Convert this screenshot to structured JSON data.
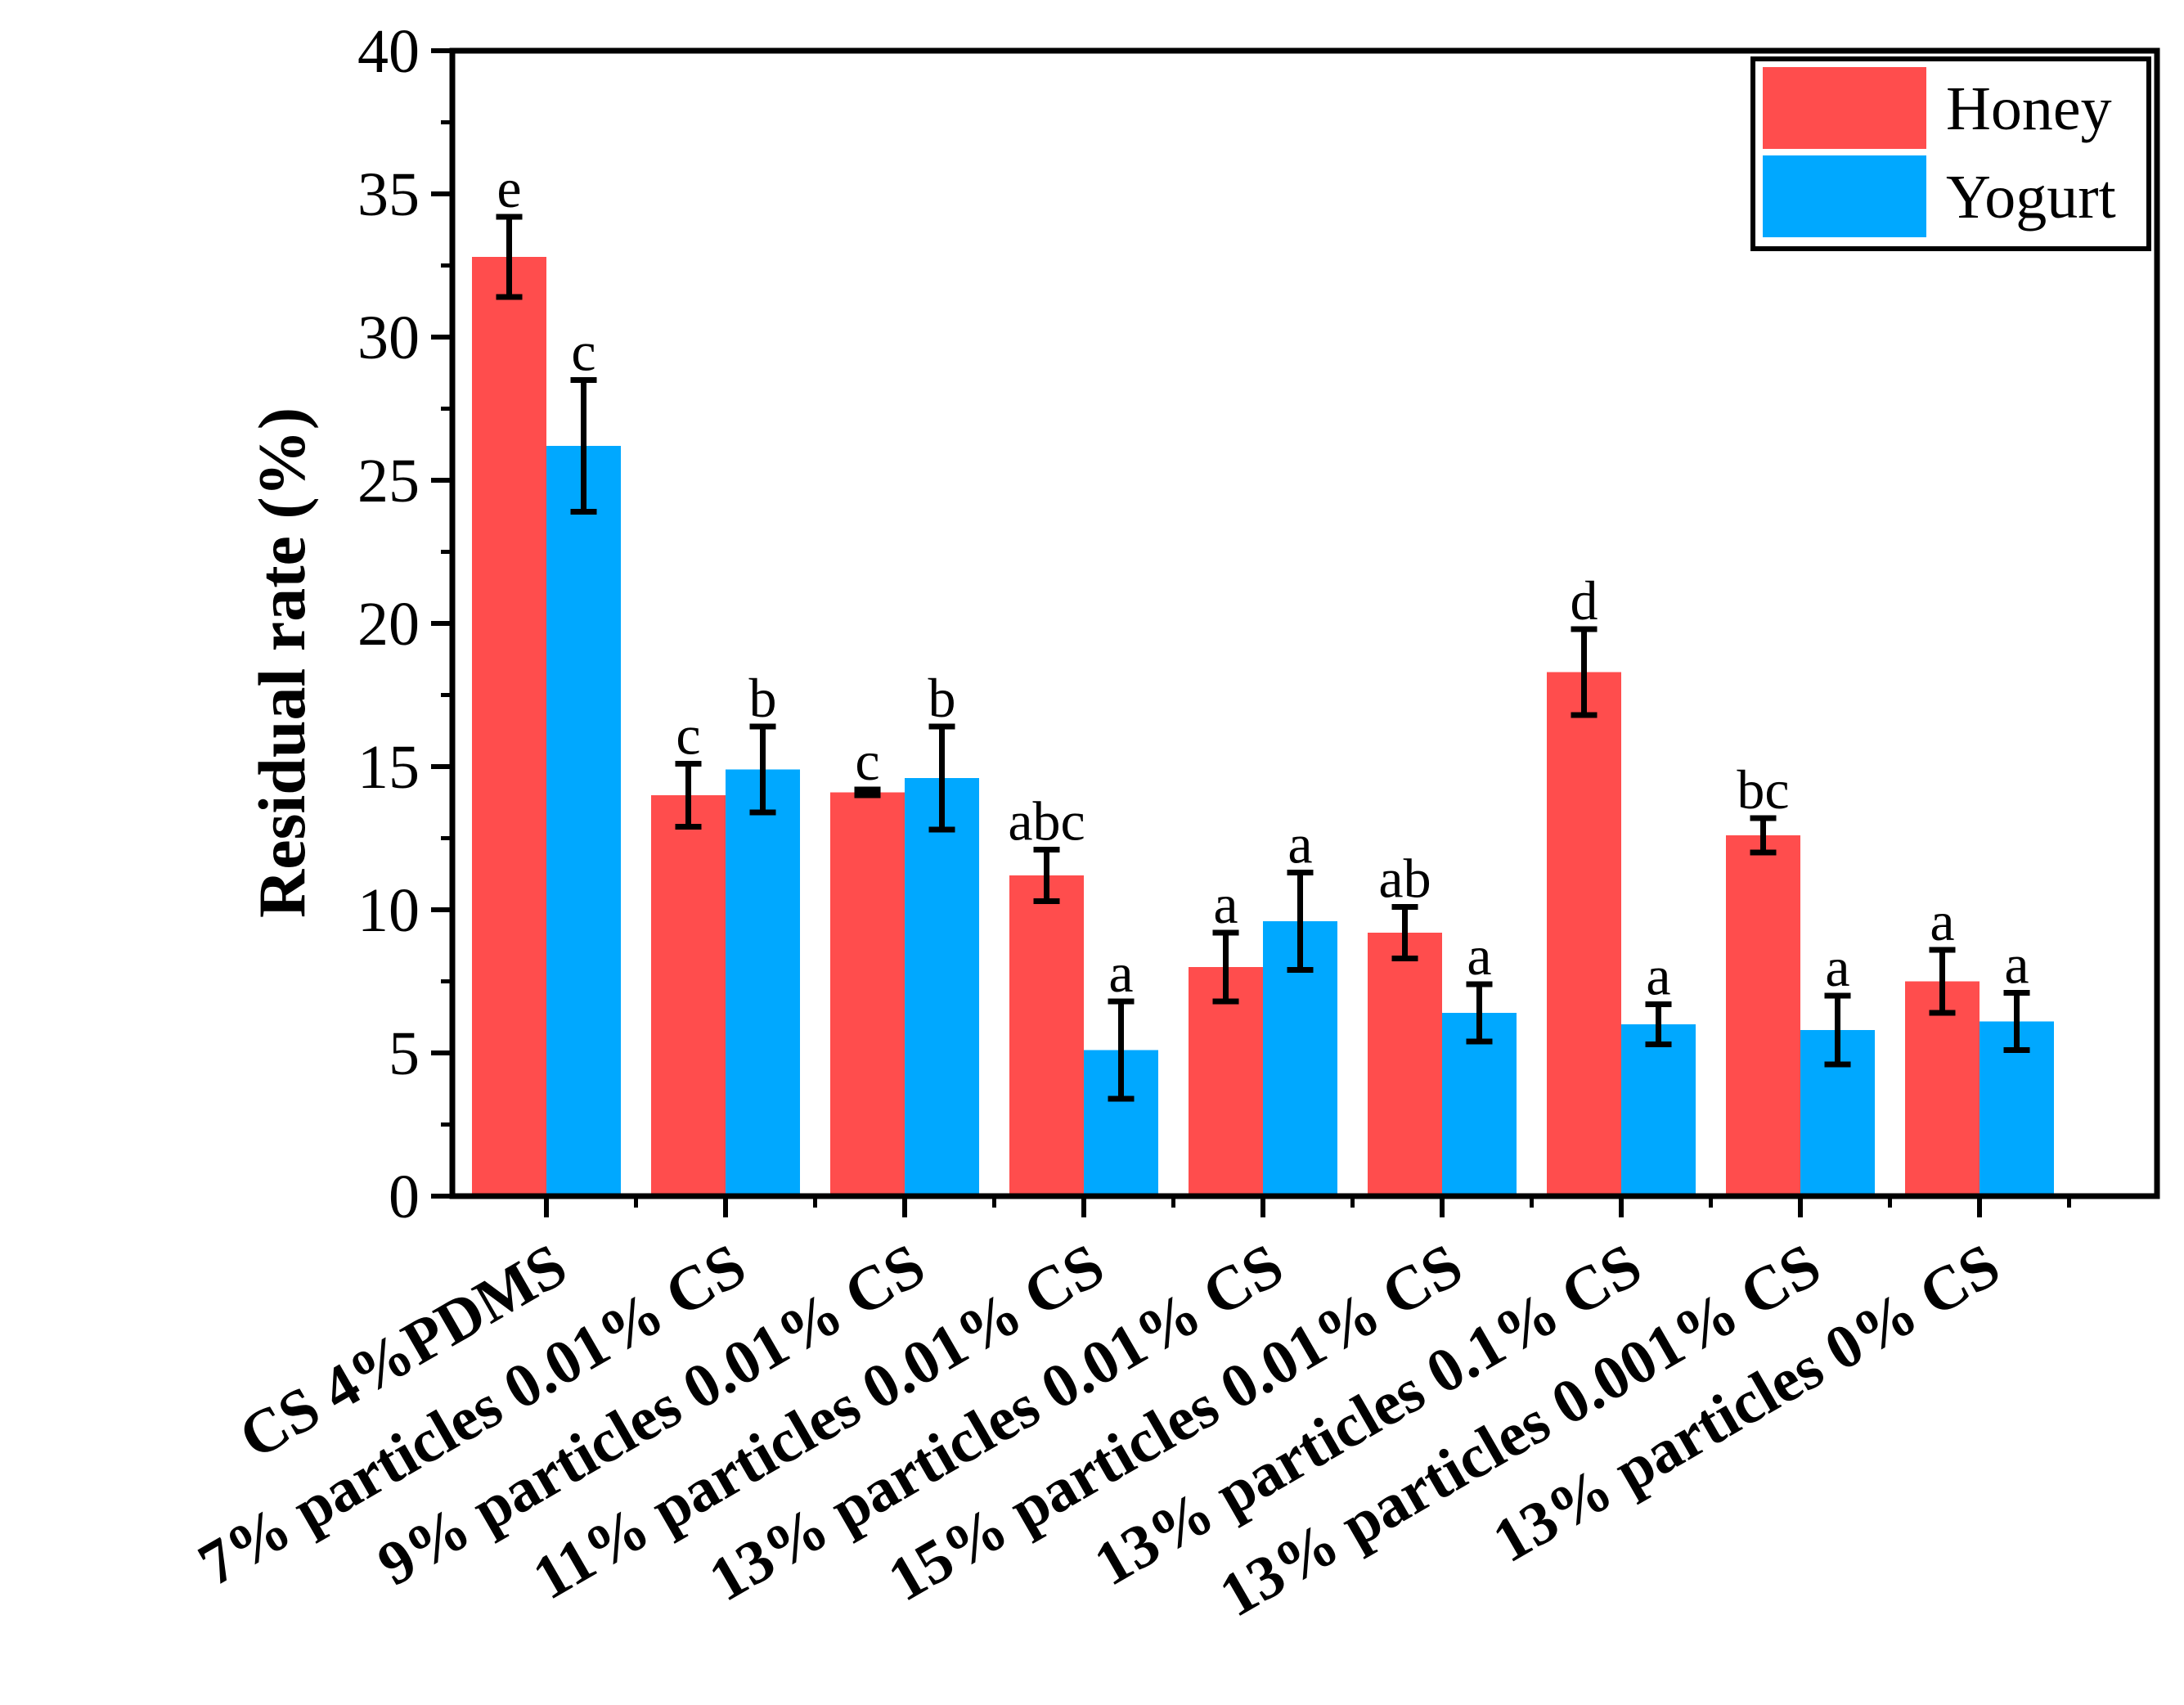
{
  "chart_data": {
    "type": "bar",
    "title": "",
    "xlabel": "",
    "ylabel": "Residual rate (%)",
    "ylim": [
      0,
      40
    ],
    "yticks": [
      "0",
      "5",
      "10",
      "15",
      "20",
      "25",
      "30",
      "35",
      "40"
    ],
    "categories": [
      "CS 4%PDMS",
      "7% particles  0.01% CS",
      "9% particles 0.01% CS",
      "11% particles 0.01% CS",
      "13% particles 0.01% CS",
      "15% particles 0.01% CS",
      "13% particles 0.1% CS",
      "13% particles 0.001% CS",
      "13% particles 0% CS"
    ],
    "series": [
      {
        "name": "Honey",
        "color": "#ff4d4d",
        "values": [
          32.8,
          14.0,
          14.1,
          11.2,
          8.0,
          9.2,
          18.3,
          12.6,
          7.5
        ],
        "errors": [
          1.4,
          1.1,
          0.1,
          0.9,
          1.2,
          0.9,
          1.5,
          0.6,
          1.1
        ],
        "labels": [
          "e",
          "c",
          "c",
          "abc",
          "a",
          "ab",
          "d",
          "bc",
          "a"
        ]
      },
      {
        "name": "Yogurt",
        "color": "#00a8ff",
        "values": [
          26.2,
          14.9,
          14.6,
          5.1,
          9.6,
          6.4,
          6.0,
          5.8,
          6.1
        ],
        "errors": [
          2.3,
          1.5,
          1.8,
          1.7,
          1.7,
          1.0,
          0.7,
          1.2,
          1.0
        ],
        "labels": [
          "c",
          "b",
          "b",
          "a",
          "a",
          "a",
          "a",
          "a",
          "a"
        ]
      }
    ],
    "legend_position": "top-right",
    "grid": false
  }
}
